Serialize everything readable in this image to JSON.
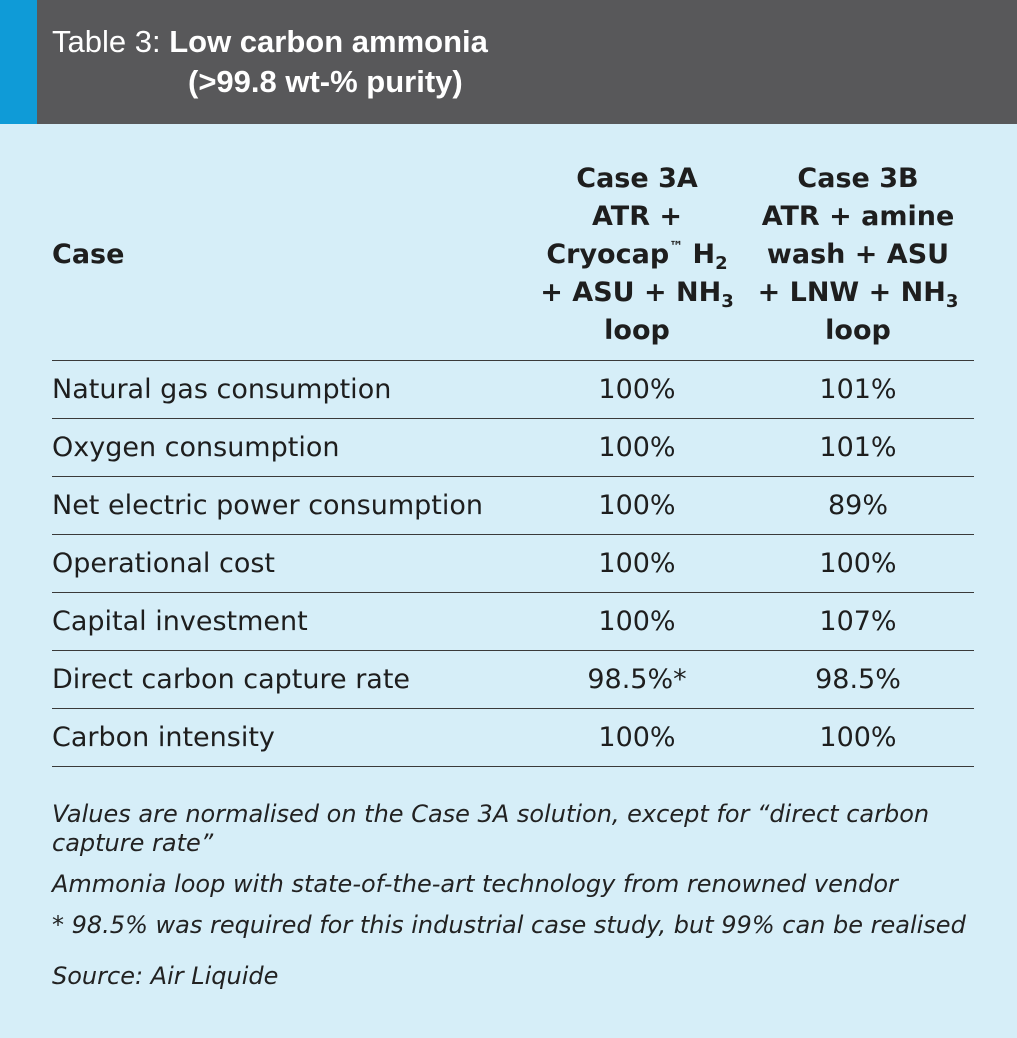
{
  "header": {
    "prefix": "Table 3: ",
    "title_line1": "Low carbon ammonia",
    "title_line2": "(>99.8 wt-% purity)",
    "accent_color": "#0f9bd7",
    "bar_color": "#58585a"
  },
  "table": {
    "col_case": "Case",
    "col_3a": {
      "l1": "Case 3A",
      "l2": "ATR +",
      "l3_a": "Cryocap",
      "l3_tm": "™",
      "l3_b": " H",
      "l3_sub": "2",
      "l4_a": "+ ASU + NH",
      "l4_sub": "3",
      "l5": "loop"
    },
    "col_3b": {
      "l1": "Case 3B",
      "l2": "ATR + amine",
      "l3": "wash + ASU",
      "l4_a": "+ LNW + NH",
      "l4_sub": "3",
      "l5": "loop"
    },
    "rows": [
      {
        "label": "Natural gas consumption",
        "a": "100%",
        "b": "101%"
      },
      {
        "label": "Oxygen consumption",
        "a": "100%",
        "b": "101%"
      },
      {
        "label": "Net electric power consumption",
        "a": "100%",
        "b": "89%"
      },
      {
        "label": "Operational cost",
        "a": "100%",
        "b": "100%"
      },
      {
        "label": "Capital investment",
        "a": "100%",
        "b": "107%"
      },
      {
        "label": "Direct carbon capture rate",
        "a": "98.5%*",
        "b": "98.5%"
      },
      {
        "label": "Carbon intensity",
        "a": "100%",
        "b": "100%"
      }
    ]
  },
  "notes": {
    "n1": "Values are normalised on the Case 3A solution, except for “direct carbon capture rate”",
    "n2": "Ammonia loop with state-of-the-art technology from renowned vendor",
    "n3": "* 98.5% was required for this industrial case study, but 99% can be realised",
    "source": "Source: Air Liquide"
  }
}
